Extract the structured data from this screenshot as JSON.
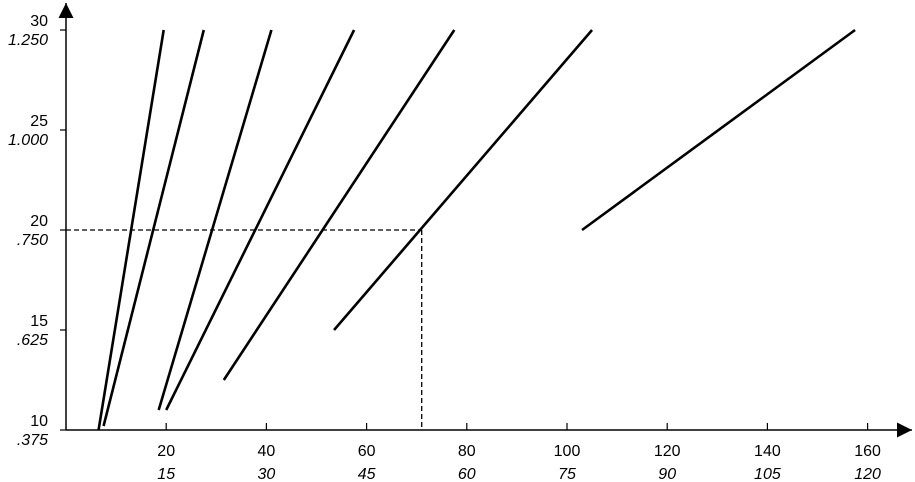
{
  "chart_data": {
    "type": "line",
    "title": "",
    "xlabel": "",
    "ylabel": "",
    "xlim": [
      0,
      170
    ],
    "ylim": [
      10,
      30
    ],
    "grid": false,
    "legend": "none",
    "x_ticks": [
      {
        "value": 20,
        "label": "20",
        "sublabel": "15"
      },
      {
        "value": 40,
        "label": "40",
        "sublabel": "30"
      },
      {
        "value": 60,
        "label": "60",
        "sublabel": "45"
      },
      {
        "value": 80,
        "label": "80",
        "sublabel": "60"
      },
      {
        "value": 100,
        "label": "100",
        "sublabel": "75"
      },
      {
        "value": 120,
        "label": "120",
        "sublabel": "90"
      },
      {
        "value": 140,
        "label": "140",
        "sublabel": "105"
      },
      {
        "value": 160,
        "label": "160",
        "sublabel": "120"
      }
    ],
    "y_ticks": [
      {
        "value": 30,
        "label": "30",
        "sublabel": "1.250"
      },
      {
        "value": 25,
        "label": "25",
        "sublabel": "1.000"
      },
      {
        "value": 20,
        "label": "20",
        "sublabel": ".750"
      },
      {
        "value": 15,
        "label": "15",
        "sublabel": ".625"
      },
      {
        "value": 10,
        "label": "10",
        "sublabel": ".375"
      }
    ],
    "series": [
      {
        "x": [
          6.5,
          19.5
        ],
        "y": [
          10.0,
          30.0
        ]
      },
      {
        "x": [
          7.5,
          27.5
        ],
        "y": [
          10.2,
          30.0
        ]
      },
      {
        "x": [
          18.5,
          41.0
        ],
        "y": [
          11.0,
          30.0
        ]
      },
      {
        "x": [
          20.0,
          57.5
        ],
        "y": [
          11.0,
          30.0
        ]
      },
      {
        "x": [
          31.5,
          77.5
        ],
        "y": [
          12.5,
          30.0
        ]
      },
      {
        "x": [
          53.5,
          105.0
        ],
        "y": [
          15.0,
          30.0
        ]
      },
      {
        "x": [
          103.0,
          157.5
        ],
        "y": [
          20.0,
          30.0
        ]
      }
    ],
    "reference_point": {
      "x": 71,
      "y": 20
    },
    "colors": {
      "lines": "#000000",
      "axes": "#000000",
      "background": "#ffffff"
    }
  }
}
